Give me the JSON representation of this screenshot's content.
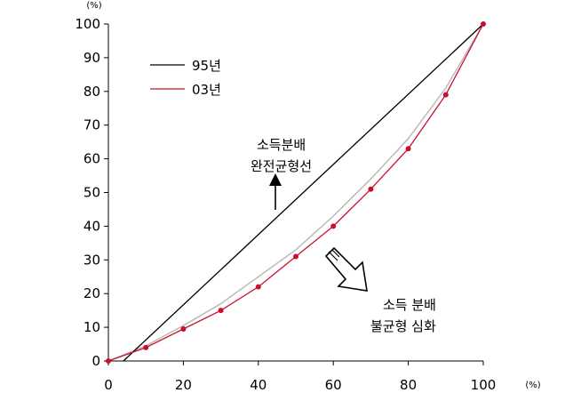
{
  "chart_data": {
    "type": "line",
    "x_unit": "(%)",
    "y_unit": "(%)",
    "xlim": [
      0,
      100
    ],
    "ylim": [
      0,
      100
    ],
    "x_ticks": [
      0,
      20,
      40,
      60,
      80,
      100
    ],
    "y_ticks": [
      0,
      10,
      20,
      30,
      40,
      50,
      60,
      70,
      80,
      90,
      100
    ],
    "series": [
      {
        "name": "95년",
        "color": "#000000",
        "x": [
          4,
          100
        ],
        "y": [
          0,
          100
        ]
      },
      {
        "name": "03년",
        "color": "#c8102e",
        "markers": true,
        "x": [
          0,
          10,
          20,
          30,
          40,
          50,
          60,
          70,
          80,
          90,
          100
        ],
        "y": [
          0,
          4,
          9.5,
          15,
          22,
          31,
          40,
          51,
          63,
          79,
          100
        ]
      }
    ],
    "background_curve": {
      "color": "#bbbbbb",
      "x": [
        0,
        10,
        20,
        30,
        40,
        50,
        60,
        70,
        80,
        90,
        100
      ],
      "y": [
        0,
        4.5,
        10.5,
        17,
        25,
        33,
        43,
        54,
        66,
        81,
        100
      ]
    },
    "legend_position": "top-left",
    "annotations": [
      {
        "lines": [
          "소득분배",
          "완전균형선"
        ],
        "arrow": "up"
      },
      {
        "lines": [
          "소득 분배",
          "불균형 심화"
        ],
        "arrow": "down-right"
      }
    ]
  }
}
